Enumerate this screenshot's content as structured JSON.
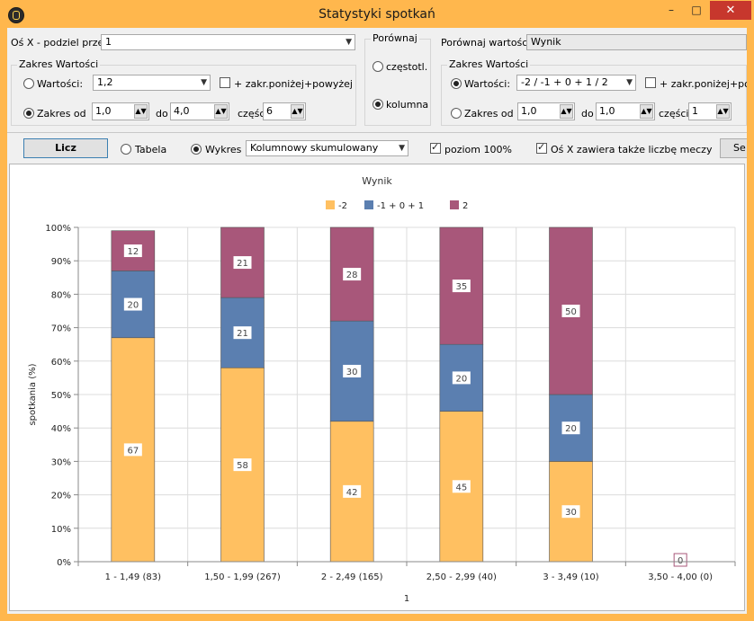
{
  "window": {
    "title": "Statystyki spotkań",
    "min": "–",
    "max": "□",
    "close": "✕"
  },
  "left": {
    "osx_label": "Oś X - podziel przez",
    "osx_value": "1",
    "group_title": "Zakres Wartości",
    "wartosci_label": "Wartości:",
    "wartosci_value": "1,2",
    "zakr_label": "+ zakr.poniżej+powyżej",
    "zakres_label": "Zakres od",
    "od_value": "1,0",
    "do_label": "do",
    "do_value": "4,0",
    "czesc_label": "częśc",
    "czesc_value": "6"
  },
  "porownaj": {
    "title": "Porównaj",
    "czestotl": "częstotl.",
    "kolumna": "kolumna"
  },
  "right": {
    "label": "Porównaj wartości",
    "value": "Wynik",
    "group_title": "Zakres Wartości",
    "wartosci_label": "Wartości:",
    "wartosci_value": "-2 / -1 + 0 + 1 / 2",
    "zakr_label": "+ zakr.poniżej+powyżej",
    "zakres_label": "Zakres od",
    "od_value": "1,0",
    "do_label": "do",
    "do_value": "1,0",
    "czesci_label": "części",
    "czesci_value": "1"
  },
  "toolbar": {
    "licz": "Licz",
    "tabela": "Tabela",
    "wykres": "Wykres",
    "chart_type": "Kolumnowy skumulowany",
    "poziom": "poziom 100%",
    "osx_liczba": "Oś X zawiera także liczbę meczy",
    "se": "Se"
  },
  "colors": {
    "s1": "#ffc061",
    "s2": "#5b7fb0",
    "s3": "#a8577a"
  },
  "chart_data": {
    "type": "bar",
    "stacked": true,
    "percent": true,
    "title": "Wynik",
    "xlabel": "1",
    "ylabel": "spotkania (%)",
    "ylim": [
      0,
      100
    ],
    "yticks": [
      "0%",
      "10%",
      "20%",
      "30%",
      "40%",
      "50%",
      "60%",
      "70%",
      "80%",
      "90%",
      "100%"
    ],
    "legend_position": "top",
    "grid": true,
    "categories": [
      "1 - 1,49 (83)",
      "1,50 - 1,99 (267)",
      "2 - 2,49 (165)",
      "2,50 - 2,99 (40)",
      "3 - 3,49 (10)",
      "3,50 - 4,00 (0)"
    ],
    "series": [
      {
        "name": "-2",
        "values": [
          67,
          58,
          42,
          45,
          30,
          0
        ]
      },
      {
        "name": "-1 + 0 + 1",
        "values": [
          20,
          21,
          30,
          20,
          20,
          0
        ]
      },
      {
        "name": "2",
        "values": [
          12,
          21,
          28,
          35,
          50,
          0
        ]
      }
    ]
  }
}
